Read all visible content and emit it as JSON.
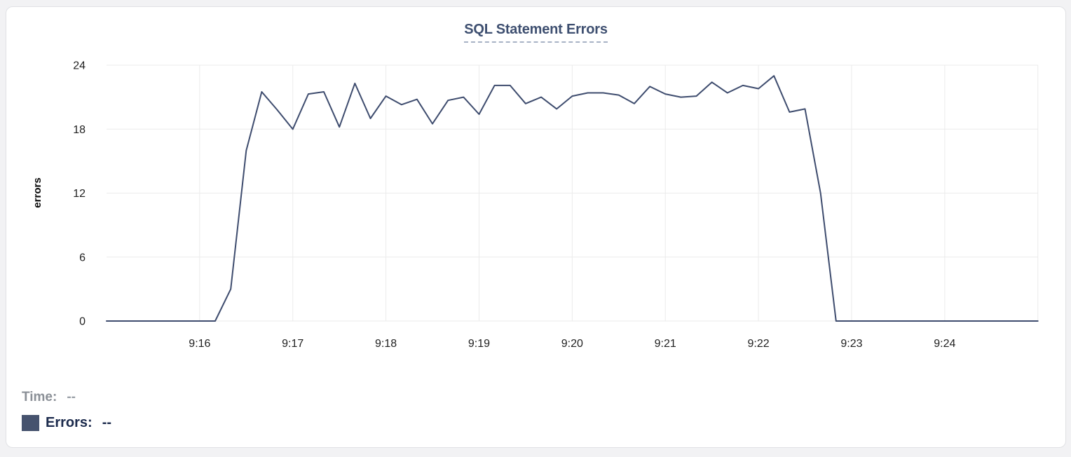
{
  "panel": {
    "title": "SQL Statement Errors"
  },
  "legend": {
    "time_label": "Time:",
    "time_value": "--",
    "errors_label": "Errors:",
    "errors_value": "--"
  },
  "colors": {
    "series_line": "#3e4c6e",
    "legend_swatch": "#46536e",
    "title_text": "#3e4f70",
    "title_dash_underline": "#a7b2c5",
    "gridline": "#ebebeb",
    "tick_text": "#1f1f1f",
    "card_border": "#e0e1e4"
  },
  "chart_data": {
    "type": "line",
    "title": "SQL Statement Errors",
    "xlabel": "",
    "ylabel": "errors",
    "ylim": [
      0,
      24
    ],
    "yticks": [
      0,
      6,
      12,
      18,
      24
    ],
    "grid": true,
    "legend_position": "bottom-left",
    "x_start": "9:15:00",
    "x_end": "9:25:00",
    "x_tick_interval_seconds": 60,
    "x_tick_labels": [
      "9:16",
      "9:17",
      "9:18",
      "9:19",
      "9:20",
      "9:21",
      "9:22",
      "9:23",
      "9:24"
    ],
    "series": [
      {
        "name": "Errors",
        "color": "#3e4c6e",
        "times": [
          "9:15:00",
          "9:15:10",
          "9:15:20",
          "9:15:30",
          "9:15:40",
          "9:15:50",
          "9:16:00",
          "9:16:10",
          "9:16:20",
          "9:16:30",
          "9:16:40",
          "9:16:50",
          "9:17:00",
          "9:17:10",
          "9:17:20",
          "9:17:30",
          "9:17:40",
          "9:17:50",
          "9:18:00",
          "9:18:10",
          "9:18:20",
          "9:18:30",
          "9:18:40",
          "9:18:50",
          "9:19:00",
          "9:19:10",
          "9:19:20",
          "9:19:30",
          "9:19:40",
          "9:19:50",
          "9:20:00",
          "9:20:10",
          "9:20:20",
          "9:20:30",
          "9:20:40",
          "9:20:50",
          "9:21:00",
          "9:21:10",
          "9:21:20",
          "9:21:30",
          "9:21:40",
          "9:21:50",
          "9:22:00",
          "9:22:10",
          "9:22:20",
          "9:22:30",
          "9:22:40",
          "9:22:50",
          "9:23:00",
          "9:23:10",
          "9:23:20",
          "9:23:30",
          "9:23:40",
          "9:23:50",
          "9:24:00",
          "9:24:10",
          "9:24:20",
          "9:24:30",
          "9:24:40",
          "9:24:50",
          "9:25:00"
        ],
        "values": [
          0,
          0,
          0,
          0,
          0,
          0,
          0,
          0,
          3,
          16,
          21.5,
          19.8,
          18,
          21.3,
          21.5,
          18.2,
          22.3,
          19,
          21.1,
          20.3,
          20.8,
          18.5,
          20.7,
          21,
          19.4,
          22.1,
          22.1,
          20.4,
          21,
          19.9,
          21.1,
          21.4,
          21.4,
          21.2,
          20.4,
          22,
          21.3,
          21,
          21.1,
          22.4,
          21.4,
          22.1,
          21.8,
          23,
          19.6,
          19.9,
          12,
          0,
          0,
          0,
          0,
          0,
          0,
          0,
          0,
          0,
          0,
          0,
          0,
          0,
          0
        ]
      }
    ]
  }
}
